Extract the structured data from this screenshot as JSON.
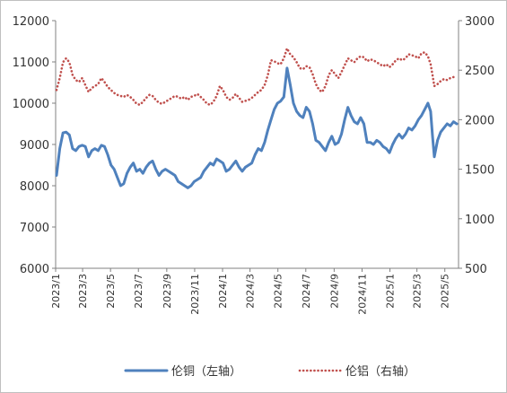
{
  "chart_data": {
    "type": "line",
    "x_range": [
      "2023-01-01",
      "2025-05-31"
    ],
    "x_ticks": [
      "2023/1",
      "2023/3",
      "2023/5",
      "2023/7",
      "2023/9",
      "2023/11",
      "2024/1",
      "2024/3",
      "2024/5",
      "2024/7",
      "2024/9",
      "2024/11",
      "2025/1",
      "2025/3",
      "2025/5"
    ],
    "y_left": {
      "min": 6000,
      "max": 12000,
      "ticks": [
        6000,
        7000,
        8000,
        9000,
        10000,
        11000,
        12000
      ]
    },
    "y_right": {
      "min": 500,
      "max": 3000,
      "ticks": [
        500,
        1000,
        1500,
        2000,
        2500,
        3000
      ]
    },
    "grid": false,
    "legend_position": "bottom",
    "series": [
      {
        "name": "伦铜（左轴）",
        "axis": "left",
        "color": "#4F81BD",
        "style": "solid",
        "points": [
          [
            "2023-01-03",
            8250
          ],
          [
            "2023-01-10",
            8900
          ],
          [
            "2023-01-17",
            9280
          ],
          [
            "2023-01-24",
            9300
          ],
          [
            "2023-01-31",
            9230
          ],
          [
            "2023-02-07",
            8900
          ],
          [
            "2023-02-14",
            8850
          ],
          [
            "2023-02-21",
            8950
          ],
          [
            "2023-02-28",
            8980
          ],
          [
            "2023-03-07",
            8950
          ],
          [
            "2023-03-14",
            8700
          ],
          [
            "2023-03-21",
            8850
          ],
          [
            "2023-03-28",
            8900
          ],
          [
            "2023-04-04",
            8850
          ],
          [
            "2023-04-11",
            8980
          ],
          [
            "2023-04-18",
            8950
          ],
          [
            "2023-04-25",
            8750
          ],
          [
            "2023-05-02",
            8500
          ],
          [
            "2023-05-09",
            8400
          ],
          [
            "2023-05-16",
            8200
          ],
          [
            "2023-05-23",
            8000
          ],
          [
            "2023-05-30",
            8050
          ],
          [
            "2023-06-06",
            8300
          ],
          [
            "2023-06-13",
            8450
          ],
          [
            "2023-06-20",
            8550
          ],
          [
            "2023-06-27",
            8350
          ],
          [
            "2023-07-04",
            8400
          ],
          [
            "2023-07-11",
            8300
          ],
          [
            "2023-07-18",
            8450
          ],
          [
            "2023-07-25",
            8550
          ],
          [
            "2023-08-01",
            8600
          ],
          [
            "2023-08-08",
            8400
          ],
          [
            "2023-08-15",
            8250
          ],
          [
            "2023-08-22",
            8350
          ],
          [
            "2023-08-29",
            8400
          ],
          [
            "2023-09-05",
            8350
          ],
          [
            "2023-09-12",
            8300
          ],
          [
            "2023-09-19",
            8250
          ],
          [
            "2023-09-26",
            8100
          ],
          [
            "2023-10-03",
            8050
          ],
          [
            "2023-10-10",
            8000
          ],
          [
            "2023-10-17",
            7950
          ],
          [
            "2023-10-24",
            8000
          ],
          [
            "2023-10-31",
            8100
          ],
          [
            "2023-11-07",
            8150
          ],
          [
            "2023-11-14",
            8200
          ],
          [
            "2023-11-21",
            8350
          ],
          [
            "2023-11-28",
            8450
          ],
          [
            "2023-12-05",
            8550
          ],
          [
            "2023-12-12",
            8500
          ],
          [
            "2023-12-19",
            8650
          ],
          [
            "2023-12-26",
            8600
          ],
          [
            "2024-01-02",
            8550
          ],
          [
            "2024-01-09",
            8350
          ],
          [
            "2024-01-16",
            8400
          ],
          [
            "2024-01-23",
            8500
          ],
          [
            "2024-01-30",
            8600
          ],
          [
            "2024-02-06",
            8450
          ],
          [
            "2024-02-13",
            8350
          ],
          [
            "2024-02-20",
            8450
          ],
          [
            "2024-02-27",
            8500
          ],
          [
            "2024-03-05",
            8550
          ],
          [
            "2024-03-12",
            8750
          ],
          [
            "2024-03-19",
            8900
          ],
          [
            "2024-03-26",
            8850
          ],
          [
            "2024-04-02",
            9050
          ],
          [
            "2024-04-09",
            9350
          ],
          [
            "2024-04-16",
            9600
          ],
          [
            "2024-04-23",
            9850
          ],
          [
            "2024-04-30",
            10000
          ],
          [
            "2024-05-07",
            10050
          ],
          [
            "2024-05-14",
            10150
          ],
          [
            "2024-05-21",
            10850
          ],
          [
            "2024-05-28",
            10450
          ],
          [
            "2024-06-04",
            10000
          ],
          [
            "2024-06-11",
            9800
          ],
          [
            "2024-06-18",
            9700
          ],
          [
            "2024-06-25",
            9650
          ],
          [
            "2024-07-02",
            9900
          ],
          [
            "2024-07-09",
            9800
          ],
          [
            "2024-07-16",
            9500
          ],
          [
            "2024-07-23",
            9100
          ],
          [
            "2024-07-30",
            9050
          ],
          [
            "2024-08-06",
            8950
          ],
          [
            "2024-08-13",
            8850
          ],
          [
            "2024-08-20",
            9050
          ],
          [
            "2024-08-27",
            9200
          ],
          [
            "2024-09-03",
            9000
          ],
          [
            "2024-09-10",
            9050
          ],
          [
            "2024-09-17",
            9250
          ],
          [
            "2024-09-24",
            9600
          ],
          [
            "2024-10-01",
            9900
          ],
          [
            "2024-10-08",
            9700
          ],
          [
            "2024-10-15",
            9550
          ],
          [
            "2024-10-22",
            9500
          ],
          [
            "2024-10-29",
            9650
          ],
          [
            "2024-11-05",
            9500
          ],
          [
            "2024-11-12",
            9050
          ],
          [
            "2024-11-19",
            9050
          ],
          [
            "2024-11-26",
            9000
          ],
          [
            "2024-12-03",
            9100
          ],
          [
            "2024-12-10",
            9050
          ],
          [
            "2024-12-17",
            8950
          ],
          [
            "2024-12-24",
            8900
          ],
          [
            "2024-12-31",
            8800
          ],
          [
            "2025-01-07",
            9000
          ],
          [
            "2025-01-14",
            9150
          ],
          [
            "2025-01-21",
            9250
          ],
          [
            "2025-01-28",
            9150
          ],
          [
            "2025-02-04",
            9250
          ],
          [
            "2025-02-11",
            9400
          ],
          [
            "2025-02-18",
            9350
          ],
          [
            "2025-02-25",
            9450
          ],
          [
            "2025-03-04",
            9600
          ],
          [
            "2025-03-11",
            9700
          ],
          [
            "2025-03-18",
            9850
          ],
          [
            "2025-03-25",
            10000
          ],
          [
            "2025-03-31",
            9800
          ],
          [
            "2025-04-04",
            9200
          ],
          [
            "2025-04-08",
            8700
          ],
          [
            "2025-04-15",
            9100
          ],
          [
            "2025-04-22",
            9300
          ],
          [
            "2025-04-29",
            9400
          ],
          [
            "2025-05-06",
            9500
          ],
          [
            "2025-05-13",
            9450
          ],
          [
            "2025-05-20",
            9550
          ],
          [
            "2025-05-27",
            9500
          ]
        ]
      },
      {
        "name": "伦铝（右轴）",
        "axis": "right",
        "color": "#C0504D",
        "style": "dotted",
        "points": [
          [
            "2023-01-03",
            2300
          ],
          [
            "2023-01-10",
            2420
          ],
          [
            "2023-01-17",
            2580
          ],
          [
            "2023-01-24",
            2620
          ],
          [
            "2023-01-31",
            2580
          ],
          [
            "2023-02-07",
            2450
          ],
          [
            "2023-02-14",
            2400
          ],
          [
            "2023-02-21",
            2380
          ],
          [
            "2023-02-28",
            2420
          ],
          [
            "2023-03-07",
            2350
          ],
          [
            "2023-03-14",
            2280
          ],
          [
            "2023-03-21",
            2320
          ],
          [
            "2023-03-28",
            2340
          ],
          [
            "2023-04-04",
            2360
          ],
          [
            "2023-04-11",
            2420
          ],
          [
            "2023-04-18",
            2380
          ],
          [
            "2023-04-25",
            2330
          ],
          [
            "2023-05-02",
            2300
          ],
          [
            "2023-05-09",
            2270
          ],
          [
            "2023-05-16",
            2250
          ],
          [
            "2023-05-23",
            2240
          ],
          [
            "2023-05-30",
            2230
          ],
          [
            "2023-06-06",
            2250
          ],
          [
            "2023-06-13",
            2230
          ],
          [
            "2023-06-20",
            2200
          ],
          [
            "2023-06-27",
            2160
          ],
          [
            "2023-07-04",
            2150
          ],
          [
            "2023-07-11",
            2180
          ],
          [
            "2023-07-18",
            2220
          ],
          [
            "2023-07-25",
            2250
          ],
          [
            "2023-08-01",
            2240
          ],
          [
            "2023-08-08",
            2200
          ],
          [
            "2023-08-15",
            2170
          ],
          [
            "2023-08-22",
            2160
          ],
          [
            "2023-08-29",
            2180
          ],
          [
            "2023-09-05",
            2200
          ],
          [
            "2023-09-12",
            2220
          ],
          [
            "2023-09-19",
            2240
          ],
          [
            "2023-09-26",
            2230
          ],
          [
            "2023-10-03",
            2210
          ],
          [
            "2023-10-10",
            2230
          ],
          [
            "2023-10-17",
            2200
          ],
          [
            "2023-10-24",
            2230
          ],
          [
            "2023-10-31",
            2240
          ],
          [
            "2023-11-07",
            2260
          ],
          [
            "2023-11-14",
            2230
          ],
          [
            "2023-11-21",
            2200
          ],
          [
            "2023-11-28",
            2160
          ],
          [
            "2023-12-05",
            2150
          ],
          [
            "2023-12-12",
            2180
          ],
          [
            "2023-12-19",
            2240
          ],
          [
            "2023-12-26",
            2340
          ],
          [
            "2024-01-02",
            2300
          ],
          [
            "2024-01-09",
            2230
          ],
          [
            "2024-01-16",
            2200
          ],
          [
            "2024-01-23",
            2220
          ],
          [
            "2024-01-30",
            2260
          ],
          [
            "2024-02-06",
            2220
          ],
          [
            "2024-02-13",
            2180
          ],
          [
            "2024-02-20",
            2190
          ],
          [
            "2024-02-27",
            2200
          ],
          [
            "2024-03-05",
            2220
          ],
          [
            "2024-03-12",
            2250
          ],
          [
            "2024-03-19",
            2280
          ],
          [
            "2024-03-26",
            2300
          ],
          [
            "2024-04-02",
            2350
          ],
          [
            "2024-04-09",
            2450
          ],
          [
            "2024-04-16",
            2600
          ],
          [
            "2024-04-23",
            2590
          ],
          [
            "2024-04-30",
            2570
          ],
          [
            "2024-05-07",
            2560
          ],
          [
            "2024-05-14",
            2620
          ],
          [
            "2024-05-21",
            2720
          ],
          [
            "2024-05-28",
            2660
          ],
          [
            "2024-06-04",
            2630
          ],
          [
            "2024-06-11",
            2580
          ],
          [
            "2024-06-18",
            2520
          ],
          [
            "2024-06-25",
            2510
          ],
          [
            "2024-07-02",
            2540
          ],
          [
            "2024-07-09",
            2530
          ],
          [
            "2024-07-16",
            2460
          ],
          [
            "2024-07-23",
            2360
          ],
          [
            "2024-07-30",
            2300
          ],
          [
            "2024-08-06",
            2280
          ],
          [
            "2024-08-13",
            2340
          ],
          [
            "2024-08-20",
            2450
          ],
          [
            "2024-08-27",
            2500
          ],
          [
            "2024-09-03",
            2460
          ],
          [
            "2024-09-10",
            2420
          ],
          [
            "2024-09-17",
            2480
          ],
          [
            "2024-09-24",
            2550
          ],
          [
            "2024-10-01",
            2620
          ],
          [
            "2024-10-08",
            2600
          ],
          [
            "2024-10-15",
            2580
          ],
          [
            "2024-10-22",
            2620
          ],
          [
            "2024-10-29",
            2640
          ],
          [
            "2024-11-05",
            2630
          ],
          [
            "2024-11-12",
            2590
          ],
          [
            "2024-11-19",
            2610
          ],
          [
            "2024-11-26",
            2600
          ],
          [
            "2024-12-03",
            2580
          ],
          [
            "2024-12-10",
            2560
          ],
          [
            "2024-12-17",
            2540
          ],
          [
            "2024-12-24",
            2560
          ],
          [
            "2024-12-31",
            2530
          ],
          [
            "2025-01-07",
            2560
          ],
          [
            "2025-01-14",
            2600
          ],
          [
            "2025-01-21",
            2620
          ],
          [
            "2025-01-28",
            2600
          ],
          [
            "2025-02-04",
            2620
          ],
          [
            "2025-02-11",
            2660
          ],
          [
            "2025-02-18",
            2650
          ],
          [
            "2025-02-25",
            2640
          ],
          [
            "2025-03-04",
            2620
          ],
          [
            "2025-03-11",
            2670
          ],
          [
            "2025-03-18",
            2680
          ],
          [
            "2025-03-25",
            2640
          ],
          [
            "2025-03-31",
            2560
          ],
          [
            "2025-04-04",
            2450
          ],
          [
            "2025-04-08",
            2340
          ],
          [
            "2025-04-15",
            2360
          ],
          [
            "2025-04-22",
            2390
          ],
          [
            "2025-04-29",
            2410
          ],
          [
            "2025-05-06",
            2400
          ],
          [
            "2025-05-13",
            2420
          ],
          [
            "2025-05-20",
            2430
          ],
          [
            "2025-05-27",
            2420
          ]
        ]
      }
    ]
  }
}
